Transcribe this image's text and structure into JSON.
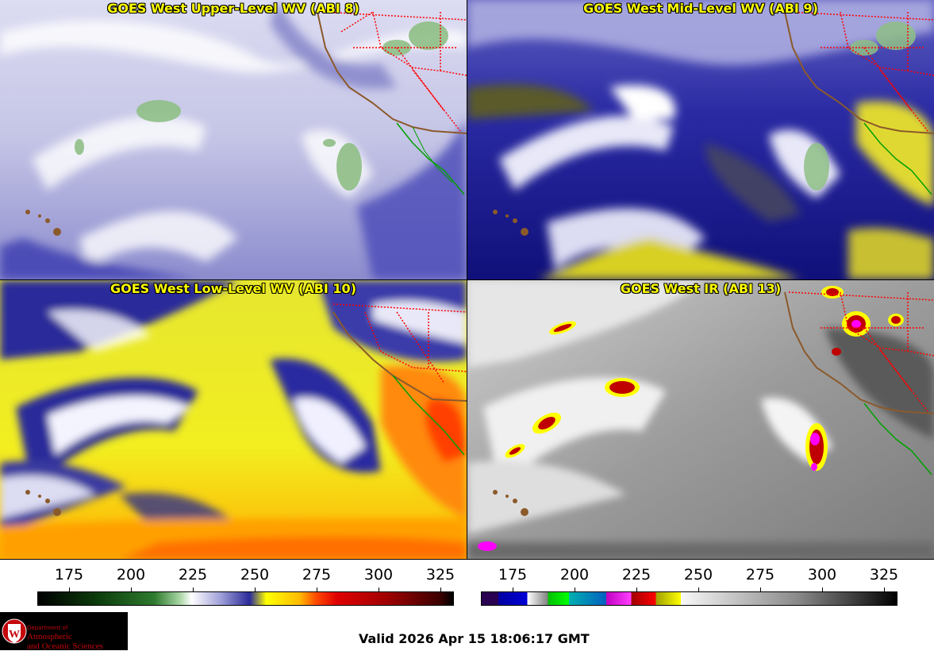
{
  "panels": [
    {
      "title": "GOES West Upper-Level WV (ABI 8)"
    },
    {
      "title": "GOES West Mid-Level WV (ABI 9)"
    },
    {
      "title": "GOES West Low-Level WV (ABI 10)"
    },
    {
      "title": "GOES West IR (ABI 13)"
    }
  ],
  "colorbar_wv": {
    "ticks": [
      "175",
      "200",
      "225",
      "250",
      "275",
      "300",
      "325"
    ]
  },
  "colorbar_ir": {
    "ticks": [
      "175",
      "200",
      "225",
      "250",
      "275",
      "300",
      "325"
    ]
  },
  "logo": {
    "line1": "Department of",
    "line2": "Atmospheric",
    "line3": "and Oceanic Sciences"
  },
  "footer": {
    "valid": "Valid 2026 Apr 15 18:06:17 GMT"
  },
  "colors": {
    "title": "#ffff00",
    "coast": "#8b5a2b",
    "borders": "#ff0000",
    "mexico": "#00a000"
  }
}
